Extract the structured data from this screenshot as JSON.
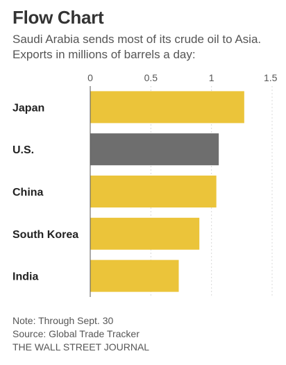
{
  "header": {
    "title": "Flow Chart",
    "subtitle": "Saudi Arabia sends most of its crude oil to Asia. Exports in millions of barrels a day:"
  },
  "colors": {
    "highlight_bar": "#EBC43A",
    "us_bar": "#6E6E6E",
    "axis": "#555555",
    "gridline": "#D8D8D8"
  },
  "chart_data": {
    "type": "bar",
    "orientation": "horizontal",
    "categories": [
      "Japan",
      "U.S.",
      "China",
      "South Korea",
      "India"
    ],
    "values": [
      1.27,
      1.06,
      1.04,
      0.9,
      0.73
    ],
    "bar_colors": [
      "#EBC43A",
      "#6E6E6E",
      "#EBC43A",
      "#EBC43A",
      "#EBC43A"
    ],
    "xlim": [
      0,
      1.5
    ],
    "xticks": [
      0,
      0.5,
      1,
      1.5
    ],
    "xtick_labels": [
      "0",
      "0.5",
      "1",
      "1.5"
    ],
    "grid": true,
    "xlabel": "",
    "ylabel": ""
  },
  "footer": {
    "note": "Note: Through Sept. 30",
    "source": "Source: Global Trade Tracker",
    "credit": "THE WALL STREET JOURNAL"
  }
}
